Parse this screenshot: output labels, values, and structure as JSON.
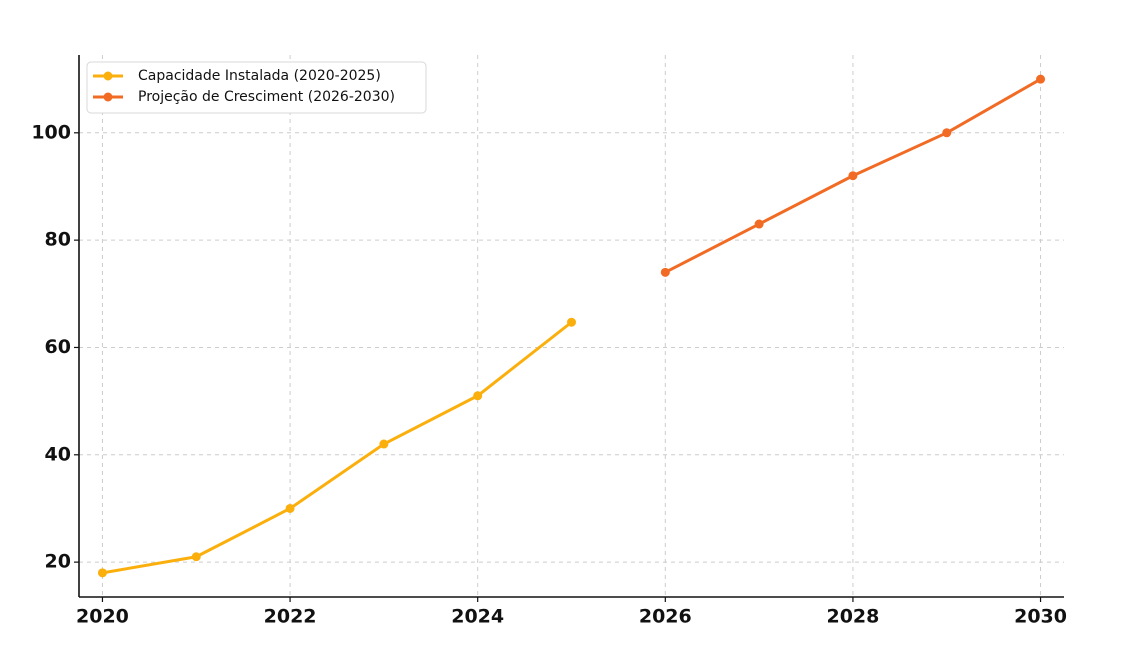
{
  "chart_data": {
    "type": "line",
    "title": "",
    "xlabel": "",
    "ylabel": "",
    "xlim": [
      2019.75,
      2030.25
    ],
    "ylim": [
      13.5,
      114.5
    ],
    "x_ticks": [
      "2020",
      "2022",
      "2024",
      "2026",
      "2028",
      "2030"
    ],
    "y_ticks": [
      "20",
      "40",
      "60",
      "80",
      "100"
    ],
    "grid": true,
    "legend_position": "top-left",
    "series": [
      {
        "name": "Capacidade Instalada (2020-2025)",
        "color": "#FBAF0C",
        "x": [
          2020,
          2021,
          2022,
          2023,
          2024,
          2025
        ],
        "y": [
          18,
          21,
          30,
          42,
          51,
          64.7
        ]
      },
      {
        "name": "Projeção de Cresciment (2026-2030)",
        "color": "#F26B25",
        "x": [
          2026,
          2027,
          2028,
          2029,
          2030
        ],
        "y": [
          74,
          83,
          92,
          100,
          110
        ]
      }
    ]
  }
}
